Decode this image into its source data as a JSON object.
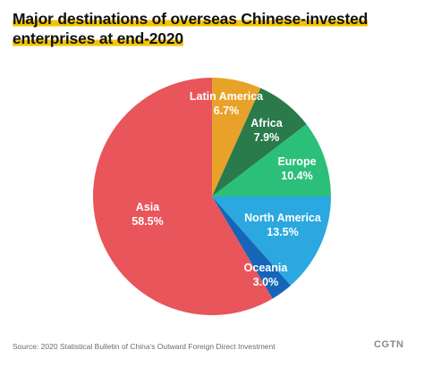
{
  "chart_data": {
    "type": "pie",
    "title": "Major destinations of overseas Chinese-invested enterprises at end-2020",
    "slices": [
      {
        "label": "Latin America",
        "value": 6.7,
        "value_label": "6.7%",
        "color": "#e8a22a"
      },
      {
        "label": "Africa",
        "value": 7.9,
        "value_label": "7.9%",
        "color": "#2a7a4b"
      },
      {
        "label": "Europe",
        "value": 10.4,
        "value_label": "10.4%",
        "color": "#2bbf7a"
      },
      {
        "label": "North America",
        "value": 13.5,
        "value_label": "13.5%",
        "color": "#2ba8e0"
      },
      {
        "label": "Oceania",
        "value": 3.0,
        "value_label": "3.0%",
        "color": "#1566b8"
      },
      {
        "label": "Asia",
        "value": 58.5,
        "value_label": "58.5%",
        "color": "#e8555a"
      }
    ],
    "start_angle_deg": 0,
    "direction": "clockwise"
  },
  "source": "Source: 2020 Statistical Bulletin of China's Outward Foreign Direct Investment",
  "logo": "CGTN"
}
